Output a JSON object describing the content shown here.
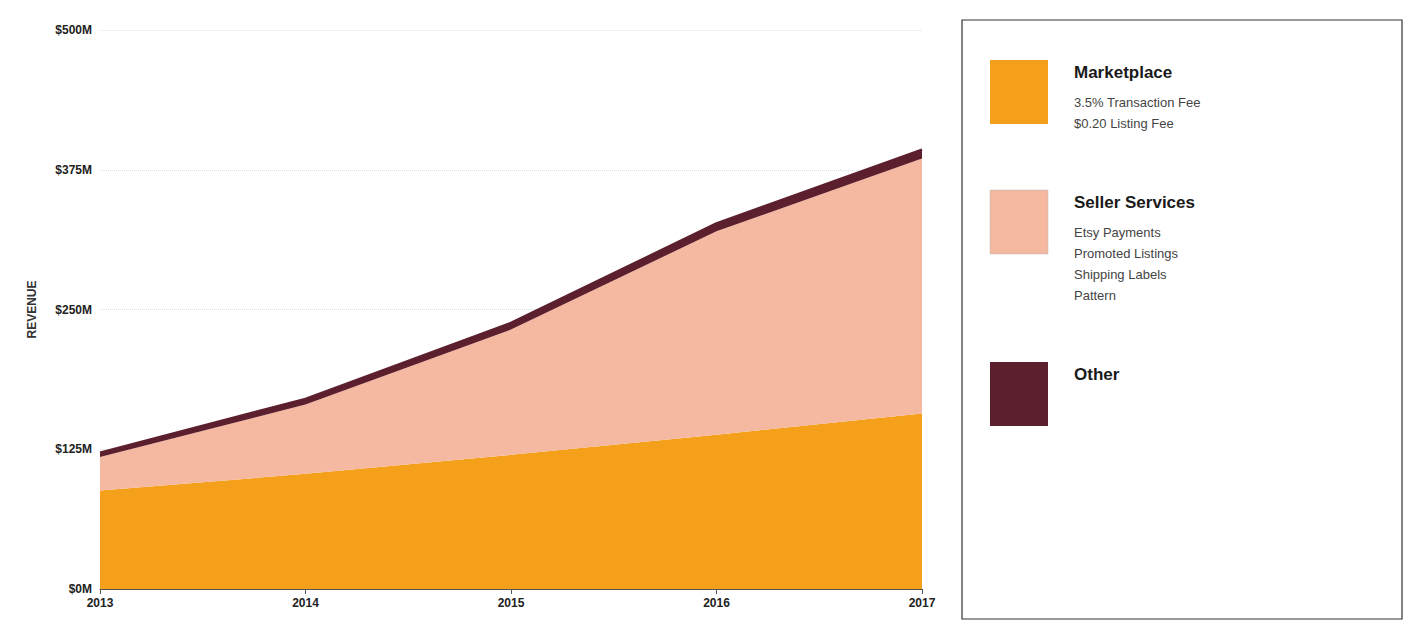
{
  "chart_data": {
    "type": "area",
    "stacked": true,
    "categories": [
      "2013",
      "2014",
      "2015",
      "2016",
      "2017"
    ],
    "ylabel": "REVENUE",
    "ylim": [
      0,
      500
    ],
    "yticks": [
      {
        "value": 0,
        "label": "$0M"
      },
      {
        "value": 125,
        "label": "$125M"
      },
      {
        "value": 250,
        "label": "$250M"
      },
      {
        "value": 375,
        "label": "$375M"
      },
      {
        "value": 500,
        "label": "$500M"
      }
    ],
    "grid": true,
    "legend": "right",
    "series": [
      {
        "name": "Marketplace",
        "color": "#F5A01A",
        "values": [
          88,
          103,
          120,
          138,
          157
        ],
        "annotation": "3.5% Transaction Fee\n$0.20 Listing Fee"
      },
      {
        "name": "Seller Services",
        "color": "#F5B8A0",
        "values": [
          30,
          62,
          112,
          182,
          228
        ],
        "annotation": "Etsy Payments\nPromoted Listings\nShipping Labels\nPattern"
      },
      {
        "name": "Other",
        "color": "#5C1F2E",
        "values": [
          4,
          5,
          6,
          7,
          8
        ]
      }
    ]
  }
}
